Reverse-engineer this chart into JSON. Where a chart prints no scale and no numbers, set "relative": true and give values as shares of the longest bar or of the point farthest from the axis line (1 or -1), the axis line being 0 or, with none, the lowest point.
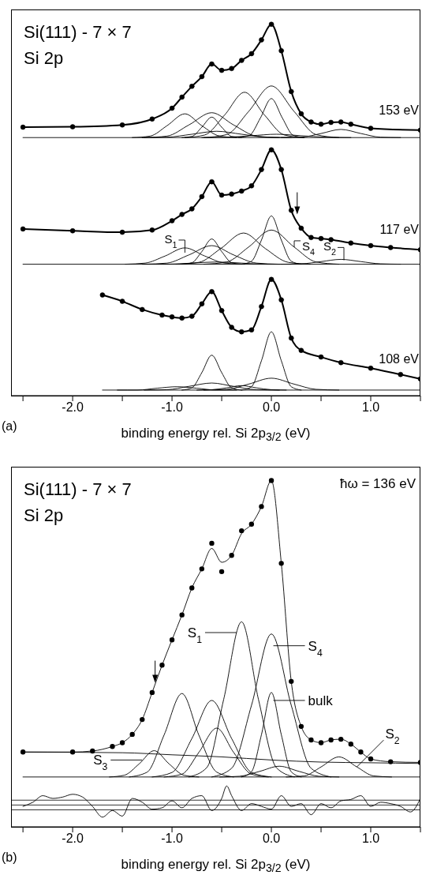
{
  "chart_data": [
    {
      "type": "line",
      "title": "Si(111) - 7 × 7",
      "subtitle": "Si 2p",
      "xlabel": "binding energy rel. Si 2p$_{3/2}$ (eV)",
      "relative": true,
      "xlim": [
        -2.62,
        1.5
      ],
      "xticks": [
        {
          "value": -2.5,
          "label": null
        },
        {
          "value": -2,
          "label": "-2.0"
        },
        {
          "value": -1.5,
          "label": null
        },
        {
          "value": -1,
          "label": "-1.0"
        },
        {
          "value": -0.5,
          "label": null
        },
        {
          "value": 0,
          "label": "0.0"
        },
        {
          "value": 0.5,
          "label": null
        },
        {
          "value": 1,
          "label": "1.0"
        },
        {
          "value": 1.5,
          "label": null
        }
      ],
      "series": [
        {
          "color": "#000000",
          "x": [
            -2.5,
            1.5
          ],
          "values": [
            0.695,
            0.695
          ]
        },
        {
          "color": "#000000",
          "x": [
            -1.4,
            -1.22,
            -1.05,
            -0.87,
            -0.7,
            -0.52,
            -0.35
          ],
          "values": [
            0.695,
            0.699,
            0.727,
            0.759,
            0.727,
            0.699,
            0.695
          ]
        },
        {
          "color": "#000000",
          "x": [
            -1.28,
            -1.05,
            -0.83,
            -0.6,
            -0.38,
            -0.15,
            0.08
          ],
          "values": [
            0.695,
            0.699,
            0.729,
            0.762,
            0.729,
            0.699,
            0.695
          ]
        },
        {
          "color": "#000000",
          "x": [
            -0.9,
            -0.8,
            -0.7,
            -0.6,
            -0.5,
            -0.4,
            -0.3
          ],
          "values": [
            0.695,
            0.698,
            0.723,
            0.75,
            0.723,
            0.698,
            0.695
          ]
        },
        {
          "color": "#000000",
          "x": [
            -0.87,
            -0.67,
            -0.47,
            -0.27,
            -0.07,
            0.13,
            0.33
          ],
          "values": [
            0.695,
            0.702,
            0.756,
            0.817,
            0.756,
            0.702,
            0.695
          ]
        },
        {
          "color": "#000000",
          "x": [
            -0.68,
            -0.45,
            -0.23,
            0,
            0.23,
            0.45,
            0.68
          ],
          "values": [
            0.695,
            0.703,
            0.765,
            0.834,
            0.765,
            0.703,
            0.695
          ]
        },
        {
          "color": "#000000",
          "x": [
            -0.33,
            -0.22,
            -0.11,
            0,
            0.11,
            0.22,
            0.33
          ],
          "values": [
            0.695,
            0.701,
            0.748,
            0.8,
            0.748,
            0.701,
            0.695
          ]
        },
        {
          "color": "#000000",
          "x": [
            0.1,
            0.3,
            0.5,
            0.7,
            0.9,
            1.1,
            1.3
          ],
          "values": [
            0.695,
            0.696,
            0.706,
            0.717,
            0.706,
            0.696,
            0.695
          ]
        },
        {
          "color": "#000000",
          "x": [
            -1.3,
            -1.05,
            -0.8,
            -0.55,
            -0.3,
            -0.05,
            0.2
          ],
          "values": [
            0.695,
            0.696,
            0.704,
            0.712,
            0.704,
            0.696,
            0.695
          ]
        },
        {
          "color": "#000000",
          "x": [
            -0.7,
            -0.45,
            -0.2,
            0.05,
            0.3,
            0.55,
            0.8
          ],
          "values": [
            0.695,
            0.696,
            0.7,
            0.704,
            0.7,
            0.696,
            0.695
          ]
        },
        {
          "name": "153 eV",
          "color": "#000000",
          "marker": "circle",
          "x": [
            -2.5,
            -2,
            -1.5,
            -1.2,
            -1,
            -0.9,
            -0.8,
            -0.7,
            -0.6,
            -0.5,
            -0.4,
            -0.3,
            -0.2,
            -0.1,
            0,
            0.1,
            0.2,
            0.3,
            0.4,
            0.5,
            0.6,
            0.7,
            0.8,
            1,
            1.5
          ],
          "values": [
            0.723,
            0.724,
            0.729,
            0.745,
            0.774,
            0.804,
            0.833,
            0.859,
            0.893,
            0.876,
            0.881,
            0.903,
            0.921,
            0.958,
            1.0,
            0.929,
            0.819,
            0.759,
            0.737,
            0.731,
            0.736,
            0.737,
            0.731,
            0.72,
            0.715
          ]
        },
        {
          "color": "#000000",
          "x": [
            -2.5,
            1.5
          ],
          "values": [
            0.354,
            0.354
          ]
        },
        {
          "color": "#000000",
          "x": [
            -1.47,
            -1.27,
            -1.07,
            -0.87,
            -0.67,
            -0.47,
            -0.27
          ],
          "values": [
            0.354,
            0.357,
            0.376,
            0.398,
            0.376,
            0.357,
            0.354
          ]
        },
        {
          "color": "#000000",
          "x": [
            -0.9,
            -0.8,
            -0.7,
            -0.6,
            -0.5,
            -0.4,
            -0.3
          ],
          "values": [
            0.354,
            0.358,
            0.388,
            0.422,
            0.388,
            0.358,
            0.354
          ]
        },
        {
          "color": "#000000",
          "x": [
            -1.28,
            -1.05,
            -0.83,
            -0.6,
            -0.38,
            -0.15,
            0.08
          ],
          "values": [
            0.354,
            0.357,
            0.379,
            0.404,
            0.379,
            0.357,
            0.354
          ]
        },
        {
          "color": "#000000",
          "x": [
            -0.96,
            -0.73,
            -0.51,
            -0.28,
            -0.06,
            0.17,
            0.39
          ],
          "values": [
            0.354,
            0.359,
            0.396,
            0.438,
            0.396,
            0.359,
            0.354
          ]
        },
        {
          "color": "#000000",
          "x": [
            -0.3,
            -0.2,
            -0.1,
            0,
            0.1,
            0.2,
            0.3
          ],
          "values": [
            0.354,
            0.362,
            0.419,
            0.484,
            0.419,
            0.362,
            0.354
          ]
        },
        {
          "color": "#000000",
          "x": [
            -0.68,
            -0.45,
            -0.23,
            0,
            0.23,
            0.45,
            0.68
          ],
          "values": [
            0.354,
            0.36,
            0.4,
            0.446,
            0.4,
            0.36,
            0.354
          ]
        },
        {
          "color": "#000000",
          "x": [
            0.1,
            0.3,
            0.5,
            0.7,
            0.9,
            1.1,
            1.3
          ],
          "values": [
            0.354,
            0.355,
            0.361,
            0.367,
            0.361,
            0.355,
            0.354
          ]
        },
        {
          "color": "#000000",
          "x": [
            -1.3,
            -1.05,
            -0.8,
            -0.55,
            -0.3,
            -0.05,
            0.2
          ],
          "values": [
            0.354,
            0.354,
            0.357,
            0.36,
            0.357,
            0.354,
            0.354
          ]
        },
        {
          "name": "117 eV",
          "color": "#000000",
          "marker": "circle",
          "x": [
            -2.5,
            -2,
            -1.5,
            -1.2,
            -1,
            -0.9,
            -0.8,
            -0.7,
            -0.6,
            -0.5,
            -0.4,
            -0.3,
            -0.2,
            -0.1,
            0,
            0.1,
            0.2,
            0.3,
            0.4,
            0.5,
            0.6,
            0.8,
            1,
            1.2,
            1.5
          ],
          "values": [
            0.449,
            0.444,
            0.44,
            0.446,
            0.471,
            0.488,
            0.503,
            0.536,
            0.576,
            0.54,
            0.543,
            0.551,
            0.565,
            0.609,
            0.662,
            0.609,
            0.499,
            0.451,
            0.426,
            0.423,
            0.42,
            0.411,
            0.404,
            0.399,
            0.393
          ]
        },
        {
          "color": "#000000",
          "x": [
            -1.7,
            1.5
          ],
          "values": [
            0.015,
            0.015
          ]
        },
        {
          "color": "#000000",
          "x": [
            -0.9,
            -0.8,
            -0.7,
            -0.6,
            -0.5,
            -0.4,
            -0.3
          ],
          "values": [
            0.015,
            0.021,
            0.062,
            0.109,
            0.062,
            0.021,
            0.015
          ]
        },
        {
          "color": "#000000",
          "x": [
            -0.3,
            -0.2,
            -0.1,
            0,
            0.1,
            0.2,
            0.3
          ],
          "values": [
            0.015,
            0.024,
            0.094,
            0.172,
            0.094,
            0.024,
            0.015
          ]
        },
        {
          "color": "#000000",
          "x": [
            -0.68,
            -0.45,
            -0.23,
            0,
            0.23,
            0.45,
            0.68
          ],
          "values": [
            0.015,
            0.017,
            0.031,
            0.047,
            0.031,
            0.017,
            0.015
          ]
        },
        {
          "color": "#000000",
          "x": [
            -1.28,
            -1.05,
            -0.83,
            -0.6,
            -0.38,
            -0.15,
            0.08
          ],
          "values": [
            0.015,
            0.016,
            0.025,
            0.034,
            0.025,
            0.016,
            0.015
          ]
        },
        {
          "color": "#000000",
          "x": [
            -1.55,
            -1.35,
            -1.15,
            -0.95,
            -0.75,
            -0.55,
            -0.35
          ],
          "values": [
            0.015,
            0.015,
            0.02,
            0.024,
            0.02,
            0.015,
            0.015
          ]
        },
        {
          "color": "#000000",
          "x": [
            -0.75,
            -0.6,
            -0.45,
            -0.3,
            -0.15,
            0,
            0.15
          ],
          "values": [
            0.015,
            0.016,
            0.021,
            0.027,
            0.021,
            0.016,
            0.015
          ]
        },
        {
          "name": "108 eV",
          "color": "#000000",
          "marker": "circle",
          "x": [
            -1.7,
            -1.5,
            -1.3,
            -1.1,
            -1,
            -0.9,
            -0.8,
            -0.7,
            -0.6,
            -0.5,
            -0.4,
            -0.3,
            -0.2,
            -0.1,
            0,
            0.1,
            0.2,
            0.3,
            0.5,
            0.7,
            1,
            1.3,
            1.5
          ],
          "values": [
            0.271,
            0.254,
            0.232,
            0.217,
            0.212,
            0.209,
            0.214,
            0.247,
            0.28,
            0.229,
            0.184,
            0.172,
            0.177,
            0.24,
            0.313,
            0.258,
            0.155,
            0.122,
            0.104,
            0.089,
            0.074,
            0.057,
            0.045
          ]
        }
      ],
      "annotations": [
        {
          "text": "S$_{1}$",
          "x": -0.87,
          "y": 0.385
        },
        {
          "text": "S$_{4}$",
          "x": 0.23,
          "y": 0.4
        },
        {
          "text": "S$_{2}$",
          "x": 0.73,
          "y": 0.365
        },
        "(a)"
      ]
    },
    {
      "type": "line",
      "title": "Si(111) - 7 × 7",
      "subtitle": "Si 2p",
      "xlabel": "binding energy rel. Si 2p$_{3/2}$ (eV)",
      "relative": true,
      "xlim": [
        -2.62,
        1.5
      ],
      "xticks": [
        {
          "value": -2.5,
          "label": null
        },
        {
          "value": -2,
          "label": "-2.0"
        },
        {
          "value": -1.5,
          "label": null
        },
        {
          "value": -1,
          "label": "-1.0"
        },
        {
          "value": -0.5,
          "label": null
        },
        {
          "value": 0,
          "label": "0.0"
        },
        {
          "value": 0.5,
          "label": null
        },
        {
          "value": 1,
          "label": "1.0"
        },
        {
          "value": 1.5,
          "label": null
        }
      ],
      "series": [
        {
          "color": "#000000",
          "x": [
            -2.5,
            1.5
          ],
          "values": [
            0.144,
            0.144
          ]
        },
        {
          "color": "#000000",
          "x": [
            -2.5,
            -1.5,
            -1,
            -0.5,
            0,
            0.5,
            1,
            1.5
          ],
          "values": [
            0.216,
            0.214,
            0.208,
            0.202,
            0.193,
            0.187,
            0.185,
            0.183
          ]
        },
        {
          "color": "#000000",
          "x": [
            -1.63,
            -1.48,
            -1.33,
            -1.18,
            -1.03,
            -0.88,
            -0.73
          ],
          "values": [
            0.144,
            0.149,
            0.182,
            0.22,
            0.182,
            0.149,
            0.144
          ]
        },
        {
          "color": "#000000",
          "x": [
            -1.43,
            -1.25,
            -1.08,
            -0.9,
            -0.73,
            -0.55,
            -0.38
          ],
          "values": [
            0.144,
            0.158,
            0.265,
            0.385,
            0.265,
            0.158,
            0.144
          ]
        },
        {
          "color": "#000000",
          "x": [
            -1.2,
            -1,
            -0.8,
            -0.6,
            -0.4,
            -0.2,
            0
          ],
          "values": [
            0.144,
            0.157,
            0.255,
            0.365,
            0.255,
            0.157,
            0.144
          ]
        },
        {
          "color": "#000000",
          "x": [
            -1.08,
            -0.9,
            -0.73,
            -0.55,
            -0.38,
            -0.2,
            -0.03
          ],
          "values": [
            0.144,
            0.152,
            0.215,
            0.285,
            0.215,
            0.152,
            0.144
          ]
        },
        {
          "color": "#000000",
          "x": [
            -0.83,
            -0.65,
            -0.48,
            -0.3,
            -0.13,
            0.05,
            0.23
          ],
          "values": [
            0.144,
            0.171,
            0.368,
            0.592,
            0.368,
            0.171,
            0.144
          ]
        },
        {
          "color": "#000000",
          "x": [
            -0.6,
            -0.4,
            -0.2,
            0,
            0.2,
            0.4,
            0.6
          ],
          "values": [
            0.144,
            0.169,
            0.351,
            0.557,
            0.351,
            0.169,
            0.144
          ]
        },
        {
          "color": "#000000",
          "x": [
            -0.3,
            -0.2,
            -0.1,
            0,
            0.1,
            0.2,
            0.3
          ],
          "values": [
            0.144,
            0.159,
            0.266,
            0.388,
            0.266,
            0.159,
            0.144
          ]
        },
        {
          "color": "#000000",
          "x": [
            -0.52,
            -0.32,
            -0.12,
            0.08,
            0.28,
            0.48,
            0.68
          ],
          "values": [
            0.144,
            0.146,
            0.16,
            0.175,
            0.16,
            0.146,
            0.144
          ]
        },
        {
          "color": "#000000",
          "x": [
            0.15,
            0.33,
            0.5,
            0.68,
            0.86,
            1.03,
            1.21
          ],
          "values": [
            0.144,
            0.147,
            0.173,
            0.202,
            0.173,
            0.147,
            0.144
          ]
        },
        {
          "color": "#000000",
          "x": [
            -2.5,
            -2,
            -1.8,
            -1.6,
            -1.5,
            -1.4,
            -1.3,
            -1.2,
            -1.1,
            -1,
            -0.9,
            -0.8,
            -0.7,
            -0.6,
            -0.5,
            -0.4,
            -0.3,
            -0.2,
            -0.1,
            0,
            0.1,
            0.2,
            0.3,
            0.4,
            0.5,
            0.6,
            0.7,
            0.8,
            0.9,
            1,
            1.2,
            1.5
          ],
          "values": [
            0.216,
            0.216,
            0.219,
            0.232,
            0.243,
            0.267,
            0.31,
            0.388,
            0.467,
            0.54,
            0.612,
            0.69,
            0.745,
            0.804,
            0.764,
            0.784,
            0.847,
            0.874,
            0.925,
            1.0,
            0.761,
            0.42,
            0.29,
            0.251,
            0.243,
            0.251,
            0.253,
            0.239,
            0.216,
            0.196,
            0.188,
            0.186
          ]
        },
        {
          "type": "scatter",
          "color": "#000000",
          "marker": "circle",
          "x": [
            -2.5,
            -2,
            -1.8,
            -1.6,
            -1.5,
            -1.4,
            -1.3,
            -1.2,
            -1.1,
            -1,
            -0.9,
            -0.8,
            -0.7,
            -0.6,
            -0.5,
            -0.4,
            -0.3,
            -0.2,
            -0.1,
            0,
            0.1,
            0.2,
            0.3,
            0.4,
            0.5,
            0.6,
            0.7,
            0.8,
            0.9,
            1,
            1.2,
            1.5
          ],
          "values": [
            0.216,
            0.216,
            0.219,
            0.232,
            0.243,
            0.267,
            0.31,
            0.388,
            0.467,
            0.54,
            0.612,
            0.69,
            0.745,
            0.819,
            0.737,
            0.784,
            0.855,
            0.874,
            0.925,
            1.0,
            0.761,
            0.42,
            0.29,
            0.251,
            0.243,
            0.251,
            0.253,
            0.239,
            0.216,
            0.196,
            0.188,
            0.186
          ]
        },
        {
          "color": "#000000",
          "x": [
            -2.5,
            -2.4,
            -2.3,
            -2.2,
            -2.1,
            -2,
            -1.9,
            -1.8,
            -1.7,
            -1.6,
            -1.5,
            -1.4,
            -1.3,
            -1.2,
            -1.1,
            -1,
            -0.9,
            -0.8,
            -0.7,
            -0.6,
            -0.5,
            -0.45,
            -0.4,
            -0.3,
            -0.2,
            -0.1,
            0,
            0.1,
            0.2,
            0.3,
            0.4,
            0.5,
            0.6,
            0.7,
            0.8,
            0.9,
            1,
            1.1,
            1.2,
            1.3,
            1.4,
            1.5
          ],
          "values": [
            0.059,
            0.071,
            0.09,
            0.082,
            0.086,
            0.094,
            0.086,
            0.059,
            0.028,
            0.047,
            0.031,
            0.082,
            0.071,
            0.051,
            0.055,
            0.075,
            0.055,
            0.082,
            0.09,
            0.047,
            0.082,
            0.118,
            0.09,
            0.047,
            0.067,
            0.059,
            0.051,
            0.09,
            0.059,
            0.067,
            0.035,
            0.067,
            0.055,
            0.075,
            0.079,
            0.09,
            0.059,
            0.071,
            0.067,
            0.059,
            0.043,
            0.082
          ]
        }
      ],
      "ref_lines": [
        {
          "axis": "y",
          "value": 0.077,
          "color": "#000000"
        },
        {
          "axis": "y",
          "value": 0.063,
          "color": "#000000"
        },
        {
          "axis": "y",
          "value": 0.049,
          "color": "#000000"
        }
      ],
      "annotations": [
        {
          "text": "S$_{1}$",
          "x": -0.35,
          "y": 0.561
        },
        {
          "text": "S$_{4}$",
          "x": 0.02,
          "y": 0.523
        },
        {
          "text": "bulk",
          "x": 0.02,
          "y": 0.365
        },
        {
          "text": "S$_{2}$",
          "x": 0.86,
          "y": 0.173
        },
        {
          "text": "S$_{3}$",
          "x": -1.3,
          "y": 0.193
        },
        "ħω = 136 eV",
        "(b)"
      ]
    }
  ]
}
